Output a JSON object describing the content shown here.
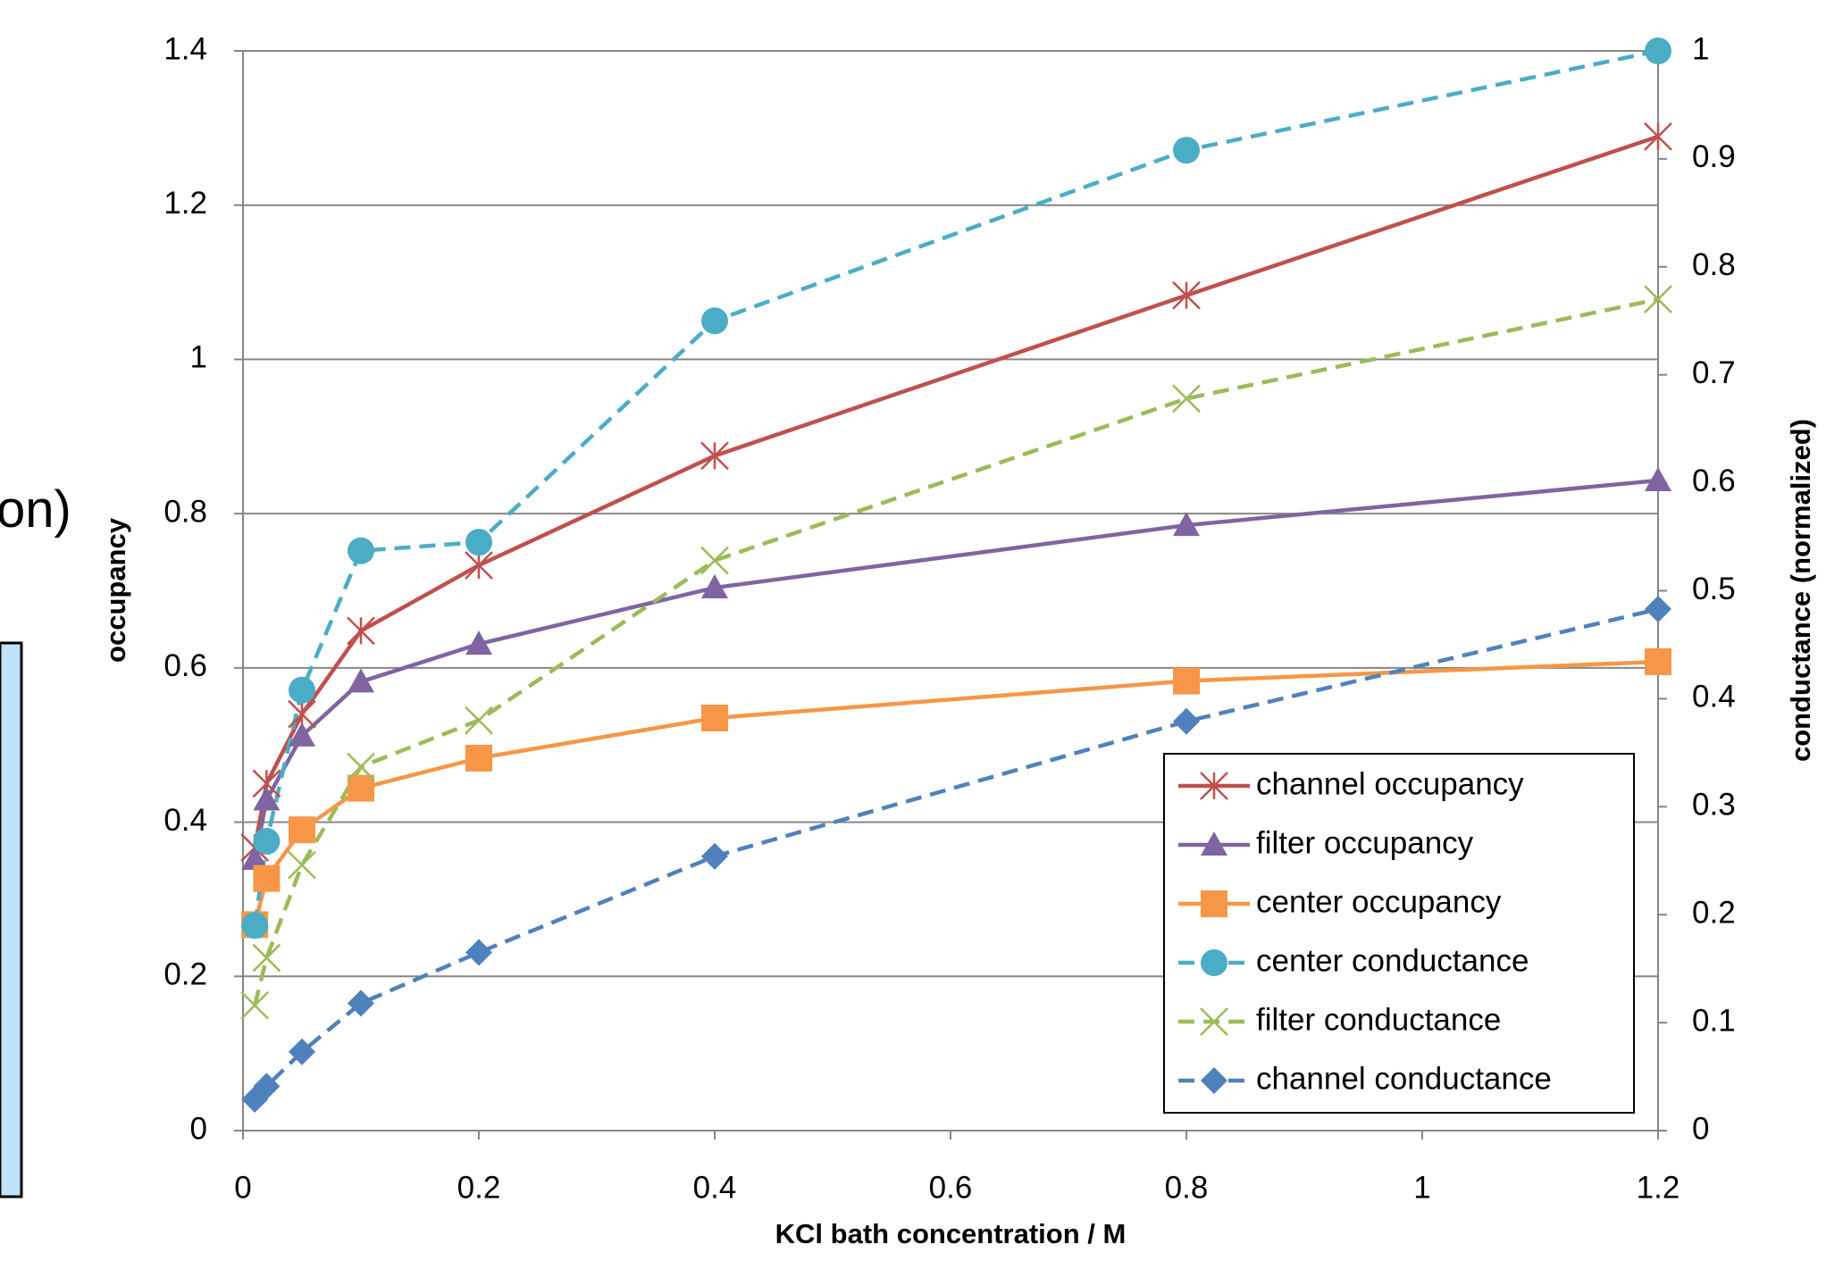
{
  "chart_data": {
    "type": "line",
    "fragment_text": "on)",
    "xlabel": "KCl bath concentration / M",
    "ylabel": "occupancy",
    "y2label": "conductance (normalized)",
    "xlim": [
      0,
      1.2
    ],
    "xticks": [
      0,
      0.2,
      0.4,
      0.6,
      0.8,
      1,
      1.2
    ],
    "ylim": [
      0,
      1.4
    ],
    "yticks": [
      0,
      0.2,
      0.4,
      0.6,
      0.8,
      1,
      1.2,
      1.4
    ],
    "y2lim": [
      0,
      1
    ],
    "y2ticks": [
      0,
      0.1,
      0.2,
      0.3,
      0.4,
      0.5,
      0.6,
      0.7,
      0.8,
      0.9,
      1
    ],
    "grid": true,
    "legend": "lower right",
    "x": [
      0.01,
      0.02,
      0.05,
      0.1,
      0.2,
      0.4,
      0.8,
      1.2
    ],
    "series": [
      {
        "name": "channel occupancy",
        "color": "#c0504d",
        "marker": "asterisk",
        "dash": false,
        "values": [
          0.367,
          0.45,
          0.54,
          0.648,
          0.733,
          0.875,
          1.083,
          1.289
        ]
      },
      {
        "name": "filter occupancy",
        "color": "#8064a2",
        "marker": "triangle",
        "dash": false,
        "values": [
          0.352,
          0.429,
          0.512,
          0.582,
          0.631,
          0.704,
          0.785,
          0.843
        ]
      },
      {
        "name": "center occupancy",
        "color": "#f79646",
        "marker": "square",
        "dash": false,
        "values": [
          0.267,
          0.327,
          0.39,
          0.444,
          0.483,
          0.535,
          0.583,
          0.608
        ]
      },
      {
        "name": "center conductance",
        "color": "#4bacc6",
        "marker": "circle",
        "dash": true,
        "axis": "y2",
        "values": [
          0.19,
          0.268,
          0.408,
          0.537,
          0.545,
          0.75,
          0.908,
          1.0
        ]
      },
      {
        "name": "filter conductance",
        "color": "#9bbb59",
        "marker": "x",
        "dash": true,
        "axis": "y2",
        "values": [
          0.116,
          0.16,
          0.246,
          0.337,
          0.38,
          0.528,
          0.678,
          0.77
        ]
      },
      {
        "name": "channel conductance",
        "color": "#4f81bd",
        "marker": "diamond",
        "dash": true,
        "axis": "y2",
        "values": [
          0.029,
          0.041,
          0.073,
          0.118,
          0.165,
          0.254,
          0.379,
          0.483
        ]
      }
    ]
  }
}
